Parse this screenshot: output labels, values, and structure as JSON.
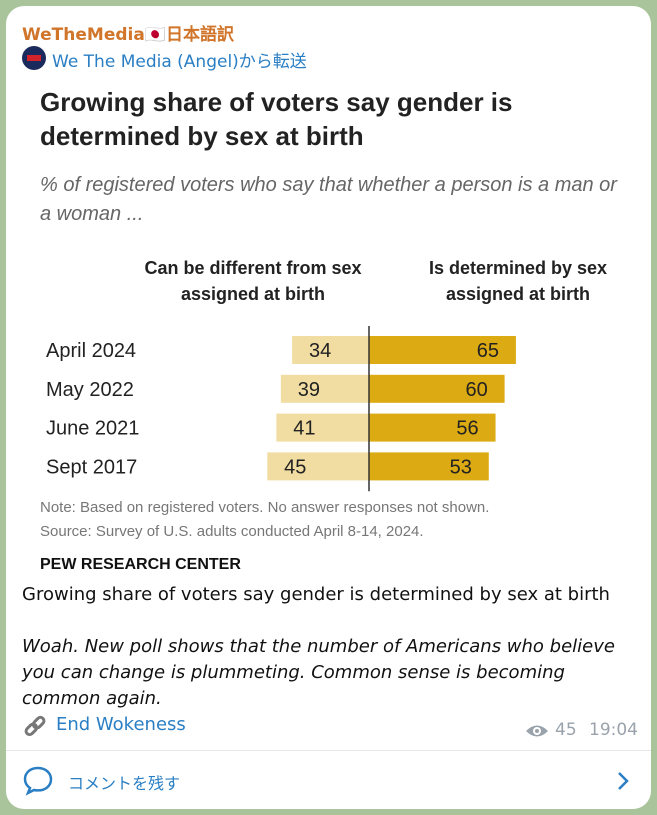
{
  "header": {
    "channel": "WeTheMedia🇯🇵日本語訳",
    "forwarded": "We The Media (Angel)から転送"
  },
  "chart_data": {
    "type": "diverging-bar",
    "title": "Growing share of voters say gender is determined by sex at birth",
    "subtitle": "% of registered voters who say that whether a person is a man or a woman ...",
    "categories": [
      "April 2024",
      "May 2022",
      "June 2021",
      "Sept 2017"
    ],
    "series": [
      {
        "name": "Can be different from sex assigned at birth",
        "color": "#f1dca2",
        "values": [
          34,
          39,
          41,
          45
        ]
      },
      {
        "name": "Is determined by sex assigned at birth",
        "color": "#dcaa12",
        "values": [
          65,
          60,
          56,
          53
        ]
      }
    ],
    "note": "Note: Based on registered voters. No answer responses not shown.",
    "source": "Source: Survey of U.S. adults conducted April 8-14, 2024.",
    "credit": "PEW RESEARCH CENTER"
  },
  "post": {
    "caption": "Growing share of voters say gender is determined by sex at birth",
    "text": "Woah. New poll shows that the number of Americans who believe you can change is plummeting. Common sense is becoming common again.",
    "link": "End Wokeness",
    "views": 45,
    "time": "19:04"
  },
  "comment": {
    "label": "コメントを残す"
  }
}
